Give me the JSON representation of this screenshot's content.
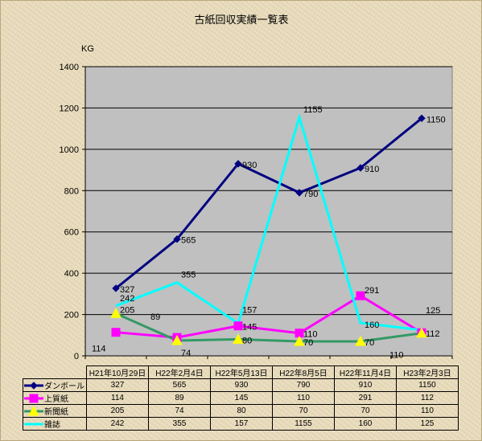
{
  "chart_data": {
    "type": "line",
    "title": "古紙回収実績一覧表",
    "ylabel": "KG",
    "xlabel": "",
    "ylim": [
      0,
      1400
    ],
    "yticks": [
      0,
      200,
      400,
      600,
      800,
      1000,
      1200,
      1400
    ],
    "grid": true,
    "plot_background": "#c0c0c0",
    "categories": [
      "H21年10月29日",
      "H22年2月4日",
      "H22年5月13日",
      "H22年8月5日",
      "H22年11月4日",
      "H23年2月3日"
    ],
    "series": [
      {
        "name": "ダンボール",
        "color": "#000080",
        "marker": "diamond",
        "values": [
          327,
          565,
          930,
          790,
          910,
          1150
        ]
      },
      {
        "name": "上質紙",
        "color": "#ff00ff",
        "marker": "square",
        "values": [
          114,
          89,
          145,
          110,
          291,
          112
        ]
      },
      {
        "name": "新聞紙",
        "color": "#339966",
        "marker": "triangle",
        "marker_color": "#ffff00",
        "values": [
          205,
          74,
          80,
          70,
          70,
          110
        ]
      },
      {
        "name": "雑誌",
        "color": "#00ffff",
        "marker": "none",
        "values": [
          242,
          355,
          157,
          1155,
          160,
          125
        ]
      }
    ]
  }
}
